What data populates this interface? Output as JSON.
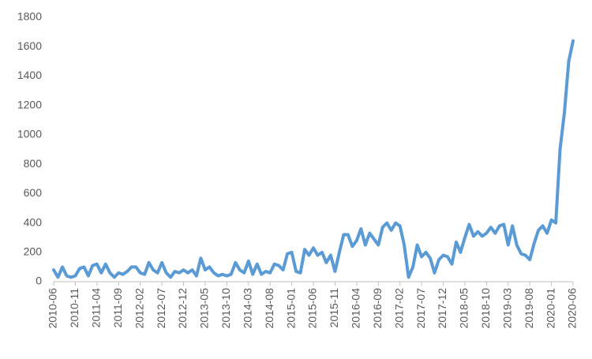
{
  "chart_data": {
    "type": "line",
    "categories": [
      "2010-06",
      null,
      null,
      null,
      null,
      "2010-11",
      null,
      null,
      null,
      null,
      "2011-04",
      null,
      null,
      null,
      null,
      "2011-09",
      null,
      null,
      null,
      null,
      "2012-02",
      null,
      null,
      null,
      null,
      "2012-07",
      null,
      null,
      null,
      null,
      "2012-12",
      null,
      null,
      null,
      null,
      "2013-05",
      null,
      null,
      null,
      null,
      "2013-10",
      null,
      null,
      null,
      null,
      "2014-03",
      null,
      null,
      null,
      null,
      "2014-08",
      null,
      null,
      null,
      null,
      "2015-01",
      null,
      null,
      null,
      null,
      "2015-06",
      null,
      null,
      null,
      null,
      "2015-11",
      null,
      null,
      null,
      null,
      "2016-04",
      null,
      null,
      null,
      null,
      "2016-09",
      null,
      null,
      null,
      null,
      "2017-02",
      null,
      null,
      null,
      null,
      "2017-07",
      null,
      null,
      null,
      null,
      "2017-12",
      null,
      null,
      null,
      null,
      "2018-05",
      null,
      null,
      null,
      null,
      "2018-10",
      null,
      null,
      null,
      null,
      "2019-03",
      null,
      null,
      null,
      null,
      "2019-08",
      null,
      null,
      null,
      null,
      "2020-01",
      null,
      null,
      null,
      null,
      "2020-06"
    ],
    "values": [
      80,
      30,
      100,
      40,
      30,
      40,
      90,
      100,
      40,
      110,
      120,
      60,
      120,
      60,
      30,
      60,
      50,
      70,
      100,
      100,
      60,
      50,
      130,
      80,
      60,
      130,
      60,
      30,
      70,
      60,
      80,
      60,
      80,
      40,
      160,
      80,
      100,
      60,
      40,
      50,
      40,
      50,
      130,
      80,
      60,
      140,
      50,
      120,
      50,
      70,
      60,
      120,
      110,
      80,
      190,
      200,
      70,
      60,
      220,
      180,
      230,
      180,
      200,
      130,
      180,
      70,
      200,
      320,
      320,
      240,
      280,
      360,
      250,
      330,
      290,
      250,
      370,
      400,
      350,
      400,
      380,
      250,
      30,
      100,
      250,
      170,
      200,
      160,
      60,
      150,
      180,
      170,
      120,
      270,
      200,
      300,
      390,
      310,
      340,
      310,
      330,
      370,
      330,
      380,
      390,
      250,
      380,
      250,
      190,
      180,
      150,
      260,
      350,
      380,
      330,
      420,
      400,
      900,
      1150,
      1500,
      1640
    ],
    "color": "#5b9bd5",
    "ylim": [
      0,
      1800
    ],
    "yticks": [
      0,
      200,
      400,
      600,
      800,
      1000,
      1200,
      1400,
      1600,
      1800
    ]
  }
}
